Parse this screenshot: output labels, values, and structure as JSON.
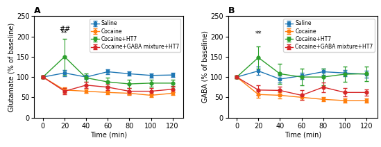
{
  "chart_data": [
    {
      "type": "line",
      "title": "A",
      "x_label": "Time (min)",
      "y_label": "Glutamate (% of baseline)",
      "x": [
        0,
        20,
        40,
        60,
        80,
        100,
        120
      ],
      "xlim": [
        -8,
        130
      ],
      "xticks": [
        0,
        20,
        40,
        60,
        80,
        100,
        120
      ],
      "ylim": [
        0,
        250
      ],
      "yticks": [
        0,
        50,
        100,
        150,
        200,
        250
      ],
      "legend": "upper right",
      "series": [
        {
          "name": "Saline",
          "marker": "square",
          "values": [
            100,
            110,
            100,
            113,
            108,
            104,
            105
          ],
          "yerr": [
            3,
            8,
            5,
            6,
            5,
            5,
            5
          ]
        },
        {
          "name": "Cocaine",
          "marker": "square",
          "values": [
            100,
            68,
            65,
            62,
            60,
            55,
            60
          ],
          "yerr": [
            3,
            7,
            5,
            4,
            4,
            4,
            4
          ]
        },
        {
          "name": "Cocaine+HT7",
          "marker": "circle",
          "values": [
            100,
            150,
            98,
            88,
            83,
            85,
            85
          ],
          "yerr": [
            3,
            45,
            10,
            10,
            10,
            8,
            8
          ]
        },
        {
          "name": "Cocaine+GABA mixture+HT7",
          "marker": "circle",
          "values": [
            100,
            65,
            80,
            75,
            65,
            65,
            70
          ],
          "yerr": [
            3,
            8,
            8,
            8,
            8,
            8,
            8
          ]
        }
      ],
      "annotations": [
        {
          "text": "##",
          "x": 20,
          "y": 210
        },
        {
          "text": "**",
          "x": 20,
          "y": 200
        }
      ]
    },
    {
      "type": "line",
      "title": "B",
      "x_label": "Time (min)",
      "y_label": "GABA (% of baseline)",
      "x": [
        0,
        20,
        40,
        60,
        80,
        100,
        120
      ],
      "xlim": [
        -8,
        130
      ],
      "xticks": [
        0,
        20,
        40,
        60,
        80,
        100,
        120
      ],
      "ylim": [
        0,
        250
      ],
      "yticks": [
        0,
        50,
        100,
        150,
        200,
        250
      ],
      "legend": "upper right",
      "series": [
        {
          "name": "Saline",
          "marker": "square",
          "values": [
            100,
            115,
            95,
            103,
            113,
            110,
            107
          ],
          "yerr": [
            3,
            10,
            8,
            8,
            8,
            8,
            8
          ]
        },
        {
          "name": "Cocaine",
          "marker": "square",
          "values": [
            100,
            57,
            55,
            50,
            45,
            42,
            42
          ],
          "yerr": [
            3,
            8,
            7,
            6,
            5,
            5,
            5
          ]
        },
        {
          "name": "Cocaine+HT7",
          "marker": "circle",
          "values": [
            100,
            148,
            108,
            100,
            100,
            107,
            108
          ],
          "yerr": [
            3,
            28,
            25,
            20,
            20,
            18,
            18
          ]
        },
        {
          "name": "Cocaine+GABA mixture+HT7",
          "marker": "circle",
          "values": [
            100,
            68,
            67,
            55,
            75,
            62,
            62
          ],
          "yerr": [
            3,
            12,
            10,
            12,
            12,
            10,
            8
          ]
        }
      ],
      "annotations": [
        {
          "text": "**",
          "x": 20,
          "y": 198
        }
      ]
    }
  ]
}
